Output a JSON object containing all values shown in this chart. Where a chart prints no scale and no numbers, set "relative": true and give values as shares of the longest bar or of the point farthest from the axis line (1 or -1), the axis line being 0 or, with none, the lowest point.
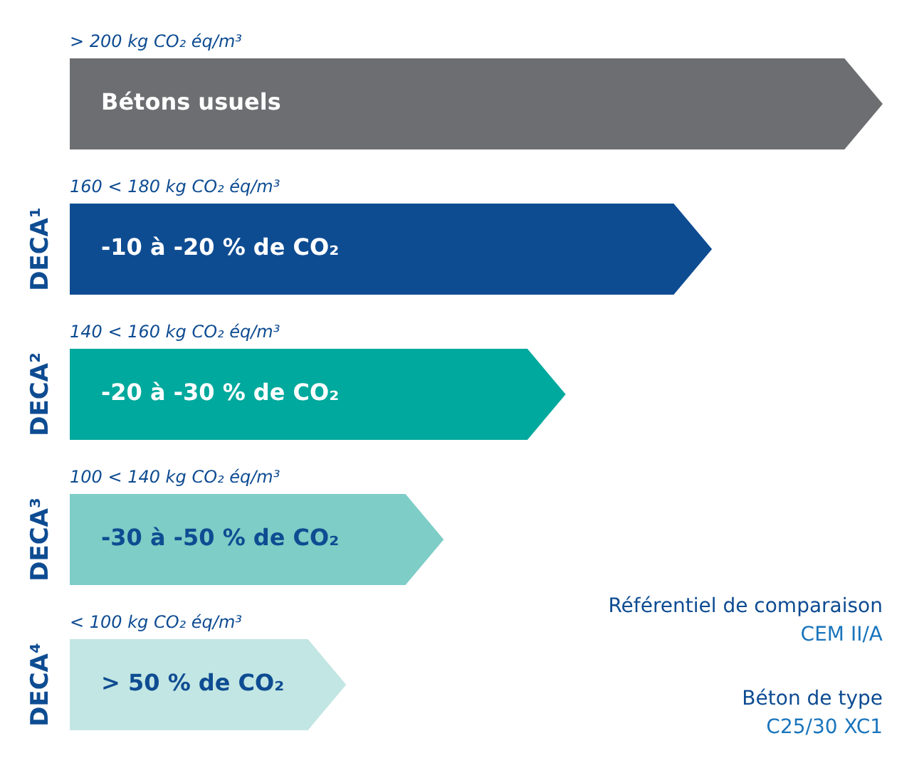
{
  "chart_data": {
    "type": "bar",
    "orientation": "horizontal",
    "relative": true,
    "categories": [
      "Bétons usuels",
      "-10 à -20 % de CO₂",
      "-20 à -30 % de CO₂",
      "-30 à -50 % de CO₂",
      "> 50 % de CO₂"
    ],
    "values": [
      1,
      0.79,
      0.61,
      0.46,
      0.34
    ],
    "colors": [
      "#6d6e71",
      "#0e4c92",
      "#00a99d",
      "#7ecdc6",
      "#c2e6e3"
    ],
    "annotations": [
      "> 200 kg CO₂ éq/m³",
      "160 < 180 kg CO₂ éq/m³",
      "DECA¹",
      "140 < 160 kg CO₂ éq/m³",
      "DECA²",
      "100 < 140 kg CO₂ éq/m³",
      "DECA³",
      "< 100 kg CO₂ éq/m³",
      "DECA⁴",
      "Référentiel de comparaison",
      "CEM II/A",
      "Béton de type",
      "C25/30 XC1"
    ]
  }
}
